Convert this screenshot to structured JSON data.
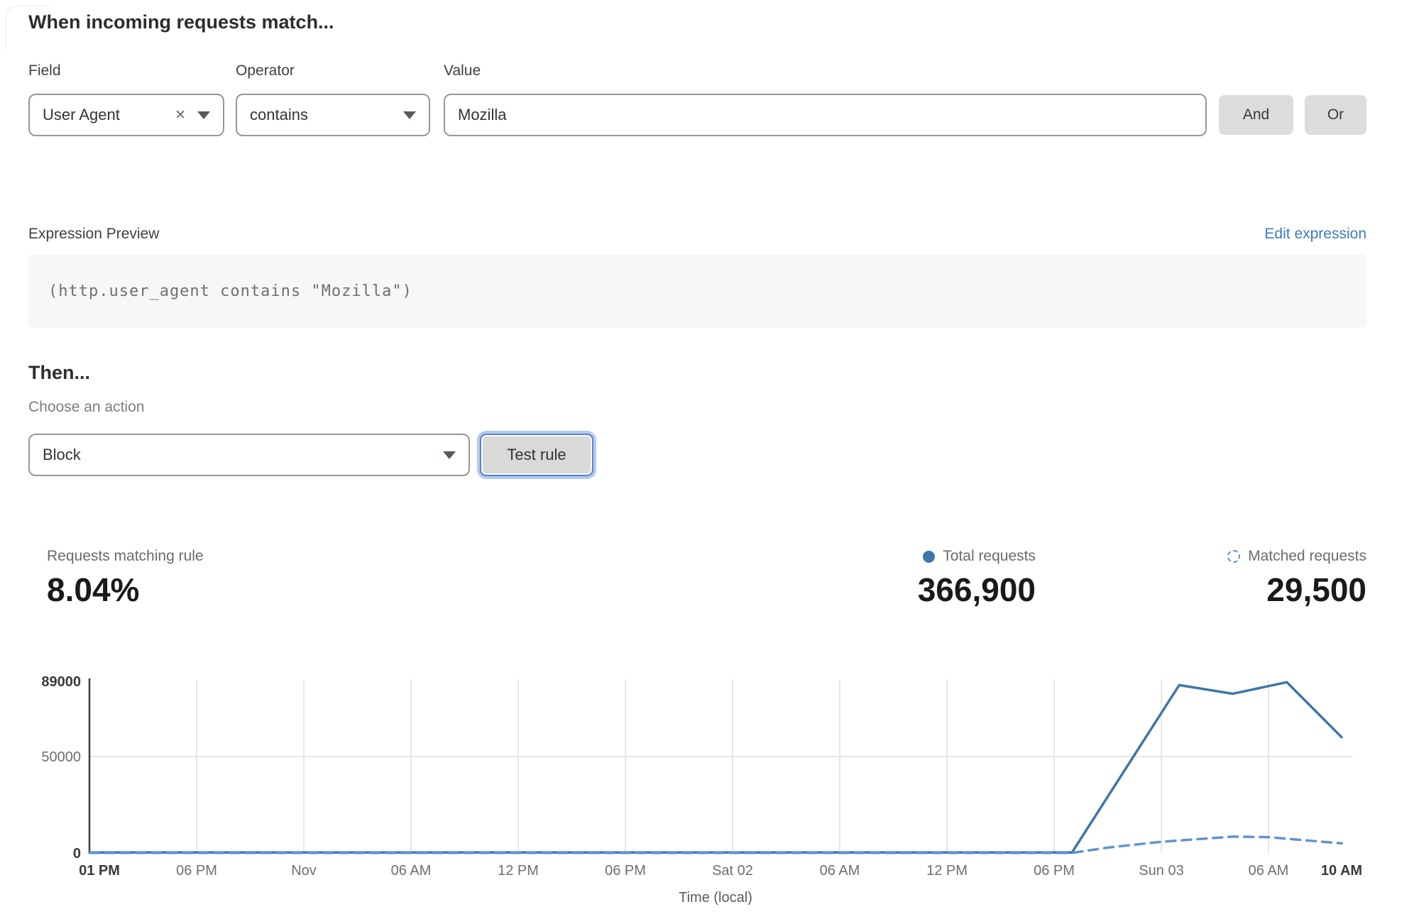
{
  "match_section": {
    "heading": "When incoming requests match...",
    "field": {
      "label": "Field",
      "value": "User Agent"
    },
    "operator": {
      "label": "Operator",
      "value": "contains"
    },
    "value": {
      "label": "Value",
      "value": "Mozilla"
    },
    "and_button": "And",
    "or_button": "Or"
  },
  "expression": {
    "label": "Expression Preview",
    "edit_link": "Edit expression",
    "code": "(http.user_agent contains \"Mozilla\")"
  },
  "then_section": {
    "heading": "Then...",
    "action_label": "Choose an action",
    "action_value": "Block",
    "test_button": "Test rule"
  },
  "stats": {
    "matching": {
      "label": "Requests matching rule",
      "value": "8.04%"
    },
    "total": {
      "label": "Total requests",
      "value": "366,900"
    },
    "matched": {
      "label": "Matched requests",
      "value": "29,500"
    }
  },
  "colors": {
    "solid_line": "#3d76ab",
    "dashed_line": "#6094cb",
    "link_blue": "#3e7cbf",
    "grid": "#e7e7e7",
    "axis": "#3d3d3d"
  },
  "chart_data": {
    "type": "line",
    "xlabel": "Time (local)",
    "ylabel": "",
    "ylim": [
      0,
      89000
    ],
    "grid": "vertical gridline per x tick, horizontal gridline at 50000",
    "legend_position": "above-right (stats row)",
    "y_ticks": [
      {
        "value": 0,
        "label": "0",
        "bold": true
      },
      {
        "value": 50000,
        "label": "50000",
        "bold": false
      },
      {
        "value": 89000,
        "label": "89000",
        "bold": true
      }
    ],
    "x_ticks": [
      {
        "hour": 0,
        "label": "01 PM",
        "bold": true
      },
      {
        "hour": 5,
        "label": "06 PM",
        "bold": false
      },
      {
        "hour": 11,
        "label": "Nov",
        "bold": false
      },
      {
        "hour": 17,
        "label": "06 AM",
        "bold": false
      },
      {
        "hour": 23,
        "label": "12 PM",
        "bold": false
      },
      {
        "hour": 29,
        "label": "06 PM",
        "bold": false
      },
      {
        "hour": 35,
        "label": "Sat 02",
        "bold": false
      },
      {
        "hour": 41,
        "label": "06 AM",
        "bold": false
      },
      {
        "hour": 47,
        "label": "12 PM",
        "bold": false
      },
      {
        "hour": 53,
        "label": "06 PM",
        "bold": false
      },
      {
        "hour": 59,
        "label": "Sun 03",
        "bold": false
      },
      {
        "hour": 65,
        "label": "06 AM",
        "bold": false
      },
      {
        "hour": 69,
        "label": "10 AM",
        "bold": true
      }
    ],
    "series": [
      {
        "name": "Total requests",
        "style": "solid",
        "color": "#3d76ab",
        "points": [
          {
            "h": 0,
            "v": 300
          },
          {
            "h": 54,
            "v": 300
          },
          {
            "h": 60,
            "v": 87000
          },
          {
            "h": 63,
            "v": 82500
          },
          {
            "h": 66,
            "v": 88500
          },
          {
            "h": 69,
            "v": 60000
          }
        ]
      },
      {
        "name": "Matched requests",
        "style": "dashed",
        "color": "#6094cb",
        "points": [
          {
            "h": 0,
            "v": 50
          },
          {
            "h": 54,
            "v": 50
          },
          {
            "h": 56,
            "v": 2800
          },
          {
            "h": 59,
            "v": 5800
          },
          {
            "h": 63,
            "v": 8500
          },
          {
            "h": 65,
            "v": 8200
          },
          {
            "h": 69,
            "v": 5000
          }
        ]
      }
    ]
  }
}
